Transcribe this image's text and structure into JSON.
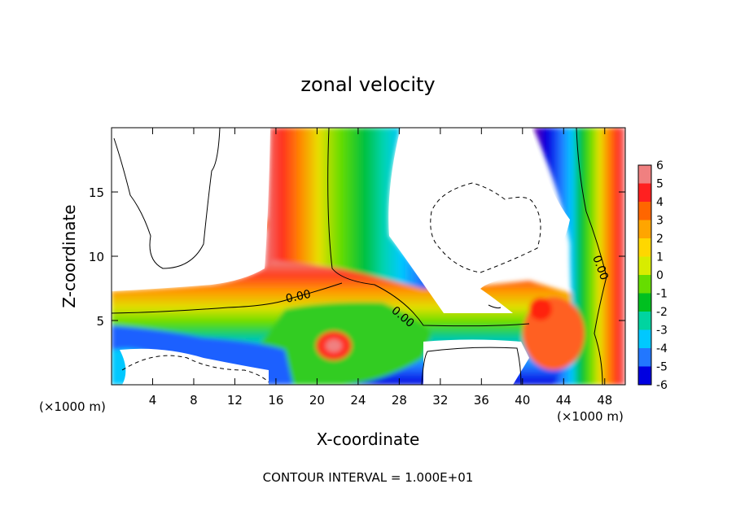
{
  "chart_data": {
    "type": "heatmap",
    "title": "zonal velocity",
    "xlabel": "X-coordinate",
    "ylabel": "Z-coordinate",
    "x_unit_left": "(×1000 m)",
    "x_unit_right": "(×1000 m)",
    "footer": "CONTOUR INTERVAL = 1.000E+01",
    "xlim": [
      0,
      50
    ],
    "ylim": [
      0,
      20
    ],
    "x_ticks": [
      4,
      8,
      12,
      16,
      20,
      24,
      28,
      32,
      36,
      40,
      44,
      48
    ],
    "y_ticks": [
      5,
      10,
      15
    ],
    "colorbar": {
      "levels": [
        6,
        5,
        4,
        3,
        2,
        1,
        0,
        -1,
        -2,
        -3,
        -4,
        -5,
        -6
      ],
      "colors": [
        "#f08080",
        "#ff2020",
        "#ff6600",
        "#ffa500",
        "#ffd700",
        "#d8ec00",
        "#66dd00",
        "#00c020",
        "#00d4a0",
        "#00c8ff",
        "#2277ff",
        "#0000e0",
        "#7000b0"
      ]
    },
    "contour_labels": [
      "0.00",
      "0.00",
      "0.00"
    ]
  }
}
